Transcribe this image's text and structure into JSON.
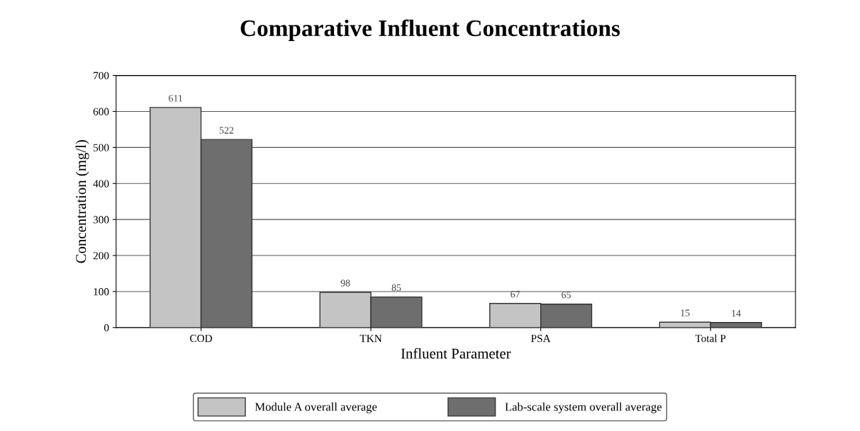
{
  "chart_data": {
    "type": "bar",
    "title": "Comparative Influent Concentrations",
    "xlabel": "Influent Parameter",
    "ylabel": "Concentration (mg/l)",
    "categories": [
      "COD",
      "TKN",
      "PSA",
      "Total P"
    ],
    "series": [
      {
        "name": "Module A overall average",
        "color": "#c4c4c4",
        "values": [
          611,
          98,
          67,
          15
        ]
      },
      {
        "name": "Lab-scale system overall average",
        "color": "#6e6e6e",
        "values": [
          522,
          85,
          65,
          14
        ]
      }
    ],
    "ylim": [
      0,
      700
    ],
    "yticks": [
      0,
      100,
      200,
      300,
      400,
      500,
      600,
      700
    ],
    "grid": "y",
    "legend": "bottom",
    "data_labels": true
  }
}
